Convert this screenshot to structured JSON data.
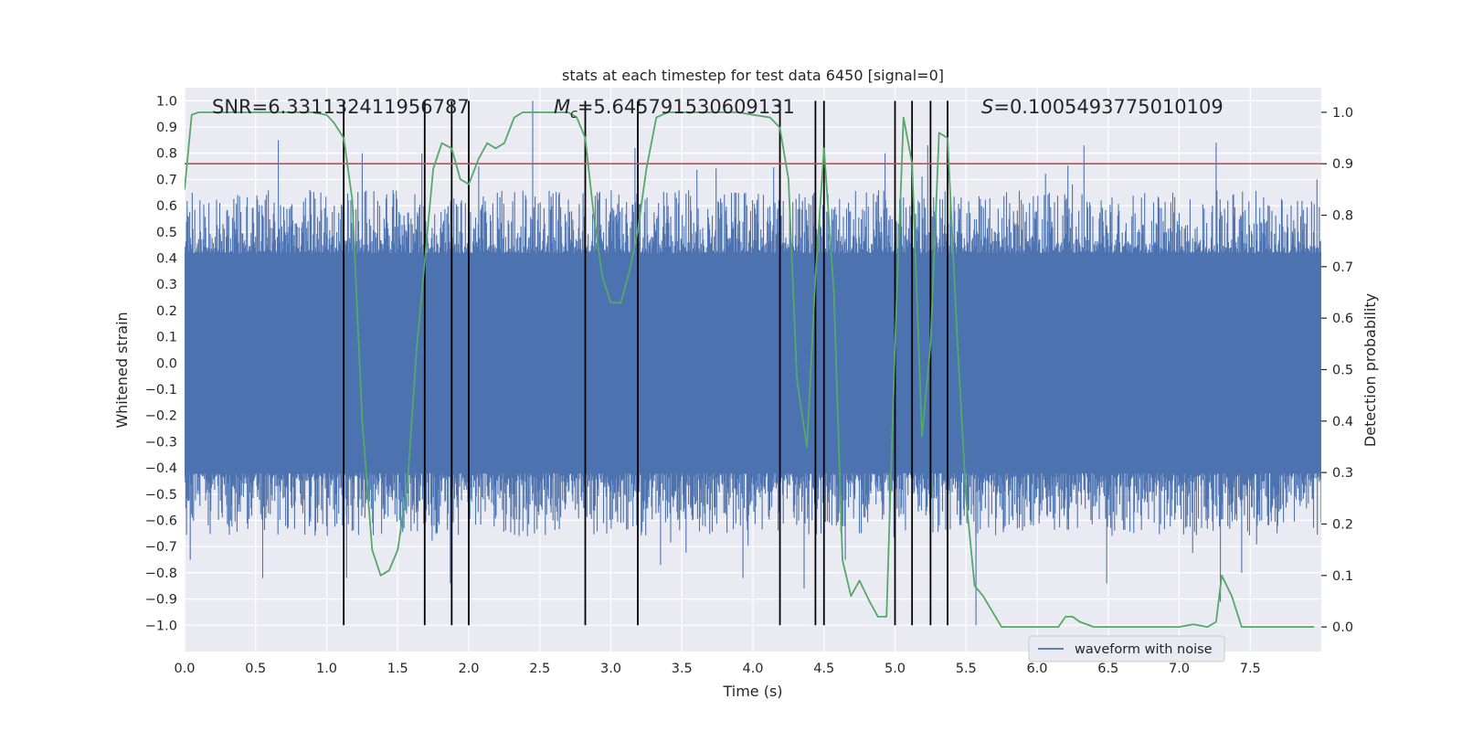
{
  "chart_data": {
    "type": "line",
    "title": "stats at each timestep for test data 6450 [signal=0]",
    "xlabel": "Time (s)",
    "ylabel": "Whitened strain",
    "y2label": "Detection probability",
    "xlim": [
      0.0,
      8.0
    ],
    "ylim": [
      -1.1,
      1.05
    ],
    "y2lim": [
      -0.0477,
      1.0477
    ],
    "xticks": [
      "0.0",
      "0.5",
      "1.0",
      "1.5",
      "2.0",
      "2.5",
      "3.0",
      "3.5",
      "4.0",
      "4.5",
      "5.0",
      "5.5",
      "6.0",
      "6.5",
      "7.0",
      "7.5"
    ],
    "yticks": [
      "1.0",
      "0.9",
      "0.8",
      "0.7",
      "0.6",
      "0.5",
      "0.4",
      "0.3",
      "0.2",
      "0.1",
      "0.0",
      "−0.1",
      "−0.2",
      "−0.3",
      "−0.4",
      "−0.5",
      "−0.6",
      "−0.7",
      "−0.8",
      "−0.9",
      "−1.0"
    ],
    "y2ticks": [
      "1.0",
      "0.9",
      "0.8",
      "0.7",
      "0.6",
      "0.5",
      "0.4",
      "0.3",
      "0.2",
      "0.1",
      "0.0"
    ],
    "annotations": {
      "snr": "SNR=6.331132411956787",
      "mc_symbol": "M",
      "mc_sub": "c",
      "mc_value": "=5.645791530609131",
      "s_symbol": "S",
      "s_value": "=0.1005493775010109"
    },
    "legend": {
      "label": "waveform with noise",
      "placement": "lower-right"
    },
    "threshold": {
      "value": 0.9,
      "axis": "y2",
      "color": "#c44e52"
    },
    "vertical_lines": [
      1.12,
      1.69,
      1.88,
      2.0,
      2.82,
      3.19,
      4.19,
      4.44,
      4.5,
      5.0,
      5.12,
      5.25,
      5.37
    ],
    "vline_range": [
      -1.0,
      1.0
    ],
    "waveform": {
      "name": "waveform with noise",
      "color": "#4c72b0",
      "core_amplitude": 0.39,
      "typical_max": [
        0.42,
        0.66
      ],
      "typical_min": [
        -0.42,
        -0.66
      ],
      "spikes": [
        [
          0.04,
          -0.75
        ],
        [
          0.55,
          -0.82
        ],
        [
          0.66,
          0.85
        ],
        [
          1.14,
          -0.82
        ],
        [
          1.25,
          0.8
        ],
        [
          1.67,
          0.8
        ],
        [
          1.87,
          -0.84
        ],
        [
          2.07,
          0.75
        ],
        [
          2.45,
          1.0
        ],
        [
          2.82,
          0.78
        ],
        [
          3.17,
          0.82
        ],
        [
          3.35,
          -0.77
        ],
        [
          3.93,
          -0.82
        ],
        [
          4.19,
          -0.8
        ],
        [
          4.36,
          -0.86
        ],
        [
          4.5,
          0.85
        ],
        [
          4.65,
          -0.75
        ],
        [
          4.93,
          0.8
        ],
        [
          5.23,
          0.83
        ],
        [
          5.57,
          -1.0
        ],
        [
          6.33,
          0.83
        ],
        [
          6.49,
          -0.84
        ],
        [
          7.26,
          0.84
        ],
        [
          7.29,
          -0.91
        ],
        [
          7.44,
          -0.8
        ],
        [
          7.97,
          0.7
        ]
      ]
    },
    "detection_probability": {
      "color": "#55a868",
      "x": [
        0.0,
        0.05,
        0.1,
        0.2,
        0.3,
        0.4,
        0.5,
        0.6,
        0.7,
        0.8,
        0.9,
        1.0,
        1.05,
        1.12,
        1.18,
        1.25,
        1.32,
        1.38,
        1.44,
        1.5,
        1.57,
        1.63,
        1.69,
        1.75,
        1.81,
        1.88,
        1.94,
        2.0,
        2.07,
        2.13,
        2.19,
        2.25,
        2.32,
        2.38,
        2.44,
        2.5,
        2.6,
        2.7,
        2.76,
        2.82,
        2.88,
        2.94,
        3.0,
        3.07,
        3.13,
        3.19,
        3.25,
        3.32,
        3.4,
        3.5,
        3.7,
        3.9,
        4.0,
        4.12,
        4.19,
        4.25,
        4.31,
        4.38,
        4.44,
        4.5,
        4.57,
        4.63,
        4.69,
        4.75,
        4.82,
        4.88,
        4.94,
        5.0,
        5.06,
        5.12,
        5.19,
        5.25,
        5.31,
        5.37,
        5.44,
        5.5,
        5.56,
        5.62,
        5.75,
        5.9,
        6.0,
        6.1,
        6.15,
        6.2,
        6.25,
        6.3,
        6.4,
        6.6,
        6.8,
        7.0,
        7.1,
        7.2,
        7.26,
        7.3,
        7.37,
        7.44,
        7.6,
        7.8,
        7.95
      ],
      "y": [
        0.85,
        0.995,
        1.0,
        1.0,
        1.0,
        1.0,
        1.0,
        1.0,
        1.0,
        1.0,
        1.0,
        0.995,
        0.98,
        0.95,
        0.83,
        0.4,
        0.15,
        0.1,
        0.11,
        0.15,
        0.28,
        0.53,
        0.71,
        0.89,
        0.94,
        0.93,
        0.87,
        0.86,
        0.91,
        0.94,
        0.93,
        0.94,
        0.99,
        1.0,
        1.0,
        1.0,
        1.0,
        1.0,
        0.99,
        0.95,
        0.8,
        0.68,
        0.63,
        0.63,
        0.69,
        0.77,
        0.89,
        0.99,
        1.0,
        1.0,
        1.0,
        1.0,
        0.995,
        0.99,
        0.97,
        0.87,
        0.48,
        0.35,
        0.68,
        0.93,
        0.65,
        0.13,
        0.06,
        0.09,
        0.05,
        0.02,
        0.02,
        0.55,
        0.99,
        0.9,
        0.37,
        0.55,
        0.96,
        0.95,
        0.55,
        0.25,
        0.08,
        0.06,
        0.0,
        0.0,
        0.0,
        0.0,
        0.0,
        0.02,
        0.02,
        0.01,
        0.0,
        0.0,
        0.0,
        0.0,
        0.005,
        0.0,
        0.01,
        0.1,
        0.06,
        0.0,
        0.0,
        0.0,
        0.0
      ]
    }
  }
}
